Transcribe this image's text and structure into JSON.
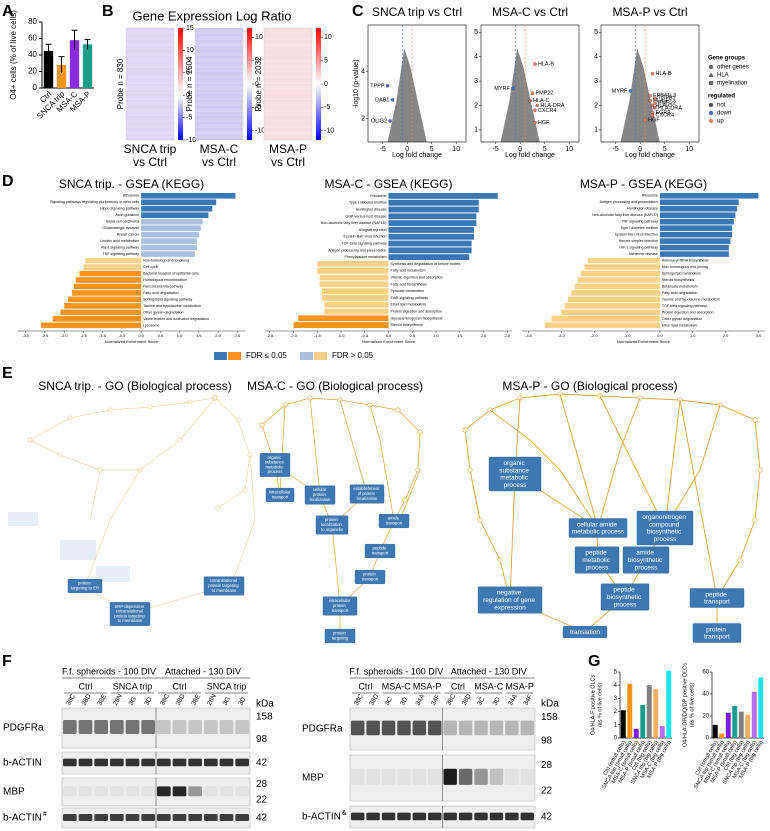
{
  "a": {
    "letter": "A",
    "type": "bar",
    "y_label": "O4+ cells (% of live cells)",
    "categories": [
      "Ctrl",
      "SNCA trip",
      "MSA-C",
      "MSA-P"
    ],
    "values": [
      45,
      28,
      58,
      53
    ],
    "errors": [
      8,
      10,
      12,
      6
    ],
    "colors": [
      "#000000",
      "#f7941d",
      "#8a2be2",
      "#1a9e8a"
    ],
    "ylim": [
      0,
      80
    ],
    "yticks": [
      0,
      20,
      40,
      60,
      80
    ]
  },
  "b": {
    "letter": "B",
    "title": "Gene Expression Log Ratio",
    "colormap": [
      "#0000ff",
      "#ffffff",
      "#ff0000"
    ],
    "heatmaps": [
      {
        "probe_label": "Probe n = 830",
        "caption": [
          "SNCA trip",
          "vs Ctrl"
        ],
        "fill": "#ddd3f3",
        "clim": [
          -10,
          15
        ],
        "cticks": [
          15,
          10,
          5,
          0,
          -5,
          -10
        ]
      },
      {
        "probe_label": "Probe n = 1604",
        "caption": [
          "MSA-C",
          "vs Ctrl"
        ],
        "fill": "#cfc8f2",
        "clim": [
          -12,
          12
        ],
        "cticks": [
          10,
          5,
          0,
          -5,
          -10
        ]
      },
      {
        "probe_label": "Probe n = 2032",
        "caption": [
          "MSA-P",
          "vs Ctrl"
        ],
        "fill": "#f6dede",
        "clim": [
          -12,
          12
        ],
        "cticks": [
          10,
          5,
          0,
          -5,
          -10
        ]
      }
    ]
  },
  "c": {
    "letter": "C",
    "y_label": "-log10 (p-value)",
    "x_label": "Log fold change",
    "fc_threshold_lines": [
      -1,
      1
    ],
    "plots": [
      {
        "title": "SNCA trip vs Ctrl",
        "xlim": [
          -8,
          12
        ],
        "xticks": [
          -5,
          0,
          5,
          10
        ],
        "ylim": [
          1,
          6
        ],
        "yticks": [
          2,
          4
        ],
        "genes": [
          {
            "label": "TPPP",
            "x": -4,
            "y": 3.4
          },
          {
            "label": "DAB1",
            "x": -3,
            "y": 2.8
          },
          {
            "label": "OLIG2",
            "x": -3.5,
            "y": 1.9
          }
        ]
      },
      {
        "title": "MSA-C vs Ctrl",
        "xlim": [
          -8,
          12
        ],
        "xticks": [
          -5,
          0,
          5,
          10
        ],
        "ylim": [
          0.5,
          5.3
        ],
        "yticks": [
          1,
          2,
          3,
          4,
          5
        ],
        "genes": [
          {
            "label": "HLA-B",
            "x": 3,
            "y": 3.7
          },
          {
            "label": "MYRF",
            "x": -1.5,
            "y": 2.7
          },
          {
            "label": "PMP22",
            "x": 2.5,
            "y": 2.5
          },
          {
            "label": "HLA-C",
            "x": 2,
            "y": 2.2
          },
          {
            "label": "HLA-DRA",
            "x": 3.5,
            "y": 2.0
          },
          {
            "label": "CXCR4",
            "x": 3,
            "y": 1.8
          },
          {
            "label": "HGF",
            "x": 3,
            "y": 1.3
          }
        ]
      },
      {
        "title": "MSA-P vs Ctrl",
        "xlim": [
          -8,
          12
        ],
        "xticks": [
          -5,
          0,
          5,
          10
        ],
        "ylim": [
          0.5,
          5.3
        ],
        "yticks": [
          1,
          2,
          3,
          4,
          5
        ],
        "genes": [
          {
            "label": "HLA-B",
            "x": 2.5,
            "y": 3.3
          },
          {
            "label": "MYRF",
            "x": -2,
            "y": 2.6
          },
          {
            "label": "EPB41L3",
            "x": 2,
            "y": 2.4
          },
          {
            "label": "TGFB1",
            "x": 3,
            "y": 2.3
          },
          {
            "label": "HLA-F",
            "x": 2,
            "y": 2.2
          },
          {
            "label": "PMP22",
            "x": 3,
            "y": 2.1
          },
          {
            "label": "HLA-C",
            "x": 2.5,
            "y": 2.0
          },
          {
            "label": "HLA-DRA",
            "x": 3,
            "y": 1.9
          },
          {
            "label": "EGR2",
            "x": 2.5,
            "y": 1.7
          },
          {
            "label": "CXCR4",
            "x": 2.5,
            "y": 1.6
          },
          {
            "label": "HGF",
            "x": 1,
            "y": 1.4
          }
        ]
      }
    ],
    "legend": {
      "groups_title": "Gene groups",
      "groups": [
        "other genes",
        "HLA",
        "myelination"
      ],
      "regulated_title": "regulated",
      "regulated": [
        "not",
        "down",
        "up"
      ],
      "regulated_colors": [
        "#555555",
        "#4a6fd0",
        "#f08060"
      ]
    }
  },
  "d": {
    "letter": "D",
    "legend": [
      "FDR ≤ 0.05",
      "FDR > 0.05"
    ],
    "colors": {
      "pos_sig": "#3a78b5",
      "pos_ns": "#a9bfdf",
      "neg_sig": "#f7941d",
      "neg_ns": "#fdd08a"
    },
    "charts": [
      {
        "title": "SNCA trip. - GSEA (KEGG)",
        "x_label": "Normalized Enrichment Score",
        "xlim": [
          -3.2,
          2.7
        ],
        "xticks": [
          {
            "value": -3,
            "label": "-3.0"
          },
          {
            "value": -2.5,
            "label": "-2.5"
          },
          {
            "value": -2,
            "label": "-2.0"
          },
          {
            "value": -1.5,
            "label": "-1.5"
          },
          {
            "value": -1,
            "label": "-1.0"
          },
          {
            "value": -0.5,
            "label": "-0.5"
          },
          {
            "value": 0,
            "label": "0.0"
          },
          {
            "value": 0.5,
            "label": "0.5"
          },
          {
            "value": 1,
            "label": "1.0"
          },
          {
            "value": 1.5,
            "label": "1.5"
          },
          {
            "value": 2,
            "label": "2.0"
          },
          {
            "value": 2.5,
            "label": "2.5"
          }
        ],
        "terms": [
          "Ribosome",
          "Signaling pathways regulating pluripotency of stem cells",
          "Hippo signaling pathway",
          "Axon guidance",
          "Basal cell carcinoma",
          "Glutamatergic synapse",
          "Breast cancer",
          "Linoleic acid metabolism",
          "Rap1 signaling pathway",
          "TNF signaling pathway",
          "Non-homologous end-joining",
          "Cell cycle",
          "Bacterial invasion of epithelial cells",
          "Homologous recombination",
          "Fanconi anemia pathway",
          "Fatty acid degradation",
          "Sphingolipid signaling pathway",
          "Taurine and hypotaurine metabolism",
          "Other glycan degradation",
          "Valine leucine and isoleucine degradation",
          "Lysosome"
        ],
        "values": [
          2.45,
          1.95,
          1.85,
          1.75,
          1.6,
          1.55,
          1.5,
          1.45,
          1.45,
          1.4,
          -1.45,
          -1.5,
          -1.6,
          -1.7,
          -1.75,
          -1.8,
          -1.9,
          -2.0,
          -2.1,
          -2.3,
          -2.6
        ],
        "significant": [
          true,
          true,
          true,
          true,
          false,
          false,
          false,
          false,
          false,
          false,
          false,
          false,
          true,
          true,
          true,
          true,
          true,
          true,
          true,
          true,
          true
        ]
      },
      {
        "title": "MSA-C - GSEA (KEGG)",
        "x_label": "Normalized Enrichment Score",
        "xlim": [
          -2.6,
          2.6
        ],
        "xticks": [
          {
            "value": -2.5,
            "label": "-2.5"
          },
          {
            "value": -2,
            "label": "-2.0"
          },
          {
            "value": -1.5,
            "label": "-1.5"
          },
          {
            "value": -1,
            "label": "-1.0"
          },
          {
            "value": -0.5,
            "label": "-0.5"
          },
          {
            "value": 0,
            "label": "0.0"
          },
          {
            "value": 0.5,
            "label": "0.5"
          },
          {
            "value": 1,
            "label": "1.0"
          },
          {
            "value": 1.5,
            "label": "1.5"
          },
          {
            "value": 2,
            "label": "2.0"
          },
          {
            "value": 2.5,
            "label": "2.5"
          }
        ],
        "terms": [
          "Ribosome",
          "Type I diabetes mellitus",
          "Huntington disease",
          "Graft-versus-host disease",
          "Non-alcoholic fatty liver disease (NAFLD)",
          "Allograft rejection",
          "Epstein-Barr virus infection",
          "TGF-beta signaling pathway",
          "Antigen processing and presentation",
          "Phenylalanine metabolism",
          "Synthesis and degradation of ketone bodies",
          "Fatty acid metabolism",
          "Vitamin digestion and absorption",
          "Fatty acid biosynthesis",
          "Pyruvate metabolism",
          "ErbB signaling pathway",
          "Ether lipid metabolism",
          "Protein digestion and absorption",
          "Glycosaminoglycan biosynthesis",
          "Steroid biosynthesis"
        ],
        "values": [
          2.3,
          1.9,
          1.9,
          1.85,
          1.85,
          1.8,
          1.8,
          1.75,
          1.75,
          1.7,
          -1.5,
          -1.5,
          -1.45,
          -1.45,
          -1.4,
          -1.4,
          -1.35,
          -1.35,
          -1.9,
          -2.0
        ],
        "significant": [
          true,
          true,
          true,
          true,
          true,
          true,
          true,
          true,
          true,
          true,
          false,
          false,
          false,
          false,
          false,
          false,
          false,
          false,
          true,
          true
        ]
      },
      {
        "title": "MSA-P - GSEA (KEGG)",
        "x_label": "Normalized Enrichment Score",
        "xlim": [
          -4.2,
          3.2
        ],
        "xticks": [
          {
            "value": -4,
            "label": "-4.0"
          },
          {
            "value": -3,
            "label": "-3.0"
          },
          {
            "value": -2,
            "label": "-2.0"
          },
          {
            "value": -1,
            "label": "-1.0"
          },
          {
            "value": 0,
            "label": "0.0"
          },
          {
            "value": 1,
            "label": "1.0"
          },
          {
            "value": 2,
            "label": "2.0"
          },
          {
            "value": 3,
            "label": "3.0"
          }
        ],
        "terms": [
          "Ribosome",
          "Antigen processing and presentation",
          "Huntington disease",
          "Non-alcoholic fatty liver disease (NAFLD)",
          "TNF signaling pathway",
          "Type I diabetes mellitus",
          "Epstein-Barr virus infection",
          "Herpes simplex infection",
          "HIF-1 signaling pathway",
          "Alzheimer disease",
          "Aminoacyl-tRNA biosynthesis",
          "Non-homologous end-joining",
          "Sphingolipid metabolism",
          "Steroid biosynthesis",
          "Butanoate metabolism",
          "Fatty acid degradation",
          "Taurine and hypotaurine metabolism",
          "TGF-beta signaling pathway",
          "Protein digestion and absorption",
          "Other glycan degradation",
          "Ether lipid metabolism"
        ],
        "values": [
          3.0,
          2.4,
          2.35,
          2.3,
          2.25,
          2.2,
          2.2,
          2.15,
          2.1,
          2.1,
          -2.2,
          -2.3,
          -2.4,
          -2.5,
          -2.6,
          -2.7,
          -2.8,
          -2.9,
          -3.0,
          -3.3,
          -3.5
        ],
        "significant": [
          true,
          true,
          true,
          true,
          true,
          true,
          true,
          true,
          true,
          true,
          false,
          false,
          false,
          false,
          false,
          false,
          false,
          false,
          false,
          false,
          false
        ]
      }
    ]
  },
  "e": {
    "letter": "E",
    "graphs": [
      {
        "title": "SNCA trip. - GO (Biological process)",
        "nodes": [
          "protein targeting to ER",
          "cotranslational protein targeting to membrane",
          "SRP-dependent cotranslational protein targeting to membrane"
        ]
      },
      {
        "title": "MSA-C - GO (Biological process)",
        "nodes": [
          "organic substance metabolic process",
          "intracellular transport",
          "cellular protein localization",
          "establishment of protein localization",
          "protein localization to organelle",
          "amide transport",
          "peptide transport",
          "protein transport",
          "intracellular protein transport",
          "protein targeting"
        ]
      },
      {
        "title": "MSA-P - GO (Biological process)",
        "nodes": [
          "organic substance metabolic process",
          "cellular amide metabolic process",
          "organonitrogen compound biosynthetic process",
          "peptide metabolic process",
          "amide biosynthetic process",
          "peptide biosynthetic process",
          "negative regulation of gene expression",
          "translation",
          "peptide transport",
          "protein transport"
        ]
      }
    ]
  },
  "f": {
    "letter": "F",
    "kda_label": "kDa",
    "blots": [
      {
        "headers": [
          "F.f. spheroids - 100 DIV",
          "Attached - 130 DIV"
        ],
        "groups": [
          "Ctrl",
          "SNCA trip",
          "Ctrl",
          "SNCA trip"
        ],
        "lanes": [
          "38C",
          "38D",
          "38E",
          "28N",
          "3G",
          "3D",
          "38C",
          "38D",
          "38E",
          "28N",
          "3G",
          "3D"
        ],
        "rows": [
          {
            "label": "PDGFRa",
            "kda": [
              158,
              98
            ]
          },
          {
            "label": "b-ACTIN",
            "kda": [
              42
            ]
          },
          {
            "label": "MBP",
            "kda": [
              28,
              22
            ]
          },
          {
            "label": "b-ACTIN",
            "sup": "#",
            "kda": [
              42
            ]
          }
        ]
      },
      {
        "headers": [
          "F.f. spheroids - 100 DIV",
          "Attached - 130 DIV"
        ],
        "groups": [
          "Ctrl",
          "MSA-C",
          "MSA-P",
          "Ctrl",
          "MSA-C",
          "MSA-P"
        ],
        "lanes": [
          "38C",
          "38D",
          "3C",
          "3D",
          "34A",
          "34F",
          "38C",
          "38D",
          "3C",
          "3D",
          "34A",
          "34F"
        ],
        "rows": [
          {
            "label": "PDGFRa",
            "kda": [
              158,
              98
            ]
          },
          {
            "label": "MBP",
            "kda": [
              28,
              22
            ]
          },
          {
            "label": "b-ACTIN",
            "sup": "&",
            "kda": [
              42
            ]
          }
        ]
      }
    ]
  },
  "g": {
    "letter": "G",
    "type": "bar",
    "categories": [
      "Ctrl (small cells)",
      "SNCA trip (small cells)",
      "MSA-C (small cells)",
      "MSA-P (small cells)",
      "Ctrl (big cells)",
      "SNCA trip (big cells)",
      "MSA-C (big cells)",
      "MSA-P (big cells)"
    ],
    "colors": [
      "#000000",
      "#f7941d",
      "#7b1fe0",
      "#1a9e8a",
      "#808080",
      "#f0b060",
      "#b76cf0",
      "#19e4f0"
    ],
    "charts": [
      {
        "y_label": [
          "O4/HLA-F positive OLCs",
          "(as % of live cells)"
        ],
        "ylim": [
          0,
          5
        ],
        "yticks": [
          0,
          1,
          2,
          3,
          4,
          5
        ],
        "values": [
          2.1,
          4.1,
          0.7,
          2.5,
          4.0,
          3.7,
          0.9,
          5.1
        ]
      },
      {
        "y_label": [
          "O4/HLA-DR/DQ/DP positive OLCs",
          "(as % of live cells)"
        ],
        "ylim": [
          0,
          60
        ],
        "yticks": [
          0,
          20,
          40,
          60
        ],
        "values": [
          12,
          4,
          23,
          29,
          24,
          21,
          42,
          55
        ]
      }
    ]
  }
}
